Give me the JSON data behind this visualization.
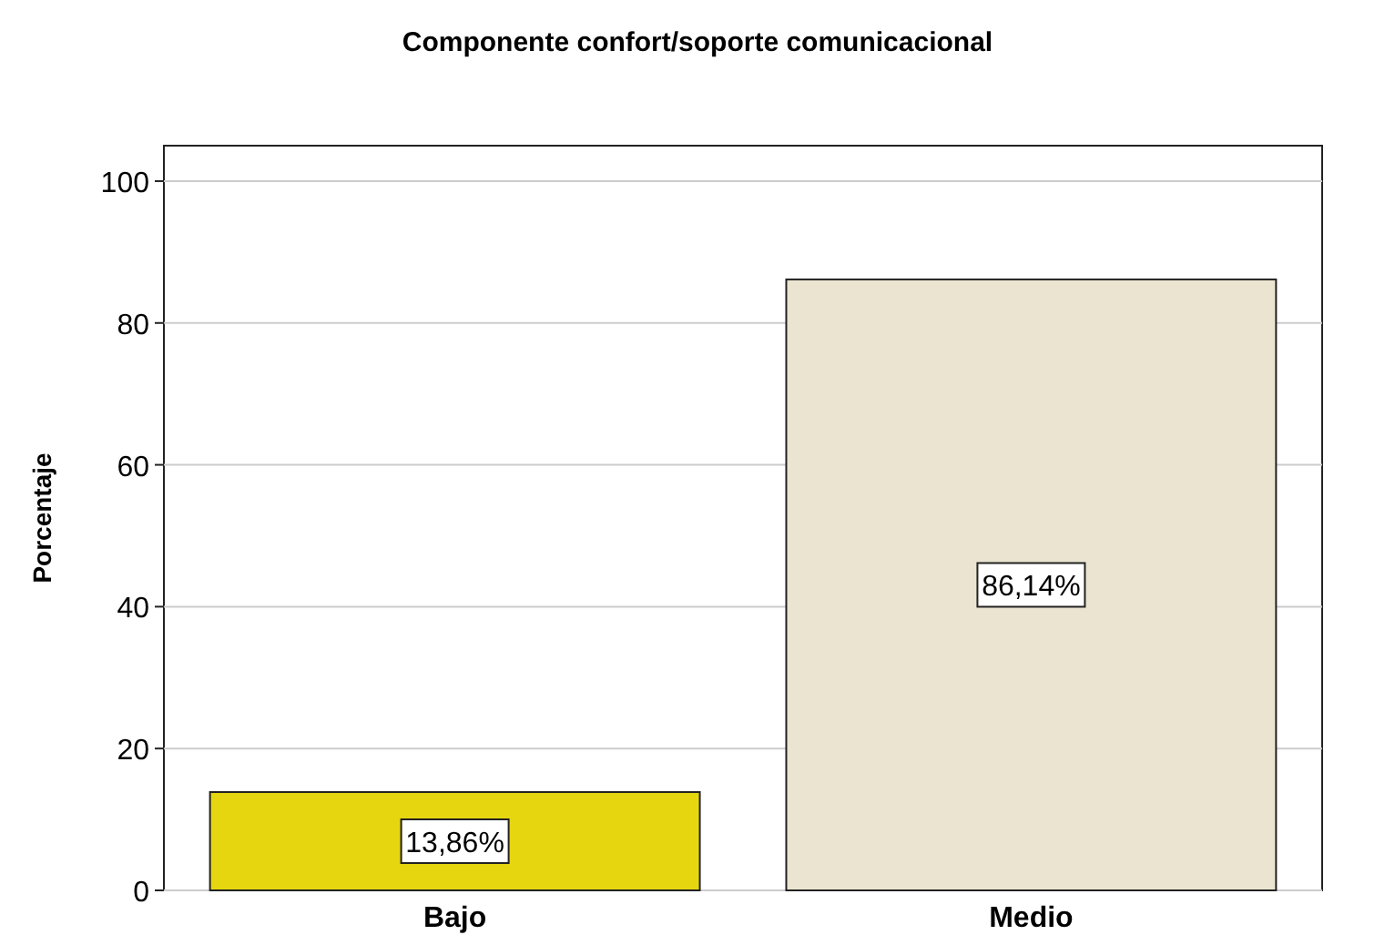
{
  "chart_data": {
    "type": "bar",
    "title": "Componente confort/soporte comunicacional",
    "ylabel": "Porcentaje",
    "categories": [
      "Bajo",
      "Medio"
    ],
    "values": [
      13.86,
      86.14
    ],
    "colors": [
      "#e6d610",
      "#ebe4d0"
    ],
    "value_labels": [
      "13,86%",
      "86,14%"
    ],
    "ylim": [
      0,
      105
    ],
    "yticks": [
      0,
      20,
      40,
      60,
      80,
      100
    ],
    "grid": "y"
  }
}
